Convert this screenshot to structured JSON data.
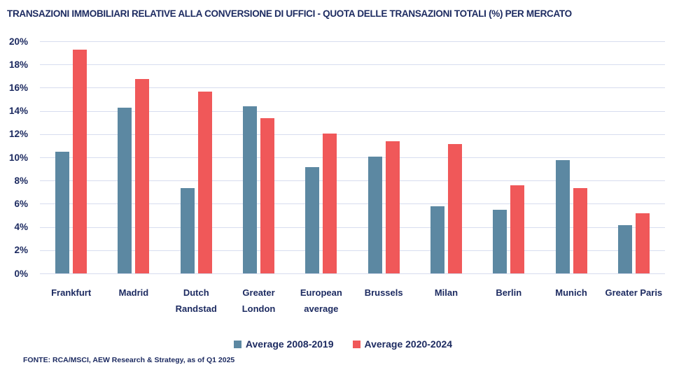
{
  "page": {
    "title": "TRANSAZIONI IMMOBILIARI RELATIVE ALLA CONVERSIONE DI UFFICI - QUOTA DELLE TRANSAZIONI TOTALI (%) PER MERCATO",
    "source": "FONTE: RCA/MSCI, AEW Research & Strategy, as of Q1 2025"
  },
  "colors": {
    "navy_text": "#1D2B61",
    "series1": "#5C88A2",
    "series2": "#F05859",
    "gridline": "#D7DDEF",
    "background": "#FFFFFF"
  },
  "chart_data": {
    "type": "bar",
    "title": "TRANSAZIONI IMMOBILIARI RELATIVE ALLA CONVERSIONE DI UFFICI - QUOTA DELLE TRANSAZIONI TOTALI (%) PER MERCATO",
    "categories": [
      "Frankfurt",
      "Madrid",
      "Dutch\nRandstad",
      "Greater\nLondon",
      "European\naverage",
      "Brussels",
      "Milan",
      "Berlin",
      "Munich",
      "Greater Paris"
    ],
    "series": [
      {
        "name": "Average 2008-2019",
        "color": "#5C88A2",
        "values": [
          10.5,
          14.3,
          7.4,
          14.4,
          9.2,
          10.1,
          5.8,
          5.5,
          9.8,
          4.2
        ]
      },
      {
        "name": "Average 2020-2024",
        "color": "#F05859",
        "values": [
          19.3,
          16.8,
          15.7,
          13.4,
          12.1,
          11.4,
          11.2,
          7.6,
          7.4,
          5.2
        ]
      }
    ],
    "xlabel": "",
    "ylabel": "",
    "ylim": [
      0,
      20
    ],
    "ytick_step": 2,
    "ytick_suffix": "%",
    "grid": true,
    "legend_position": "bottom"
  }
}
